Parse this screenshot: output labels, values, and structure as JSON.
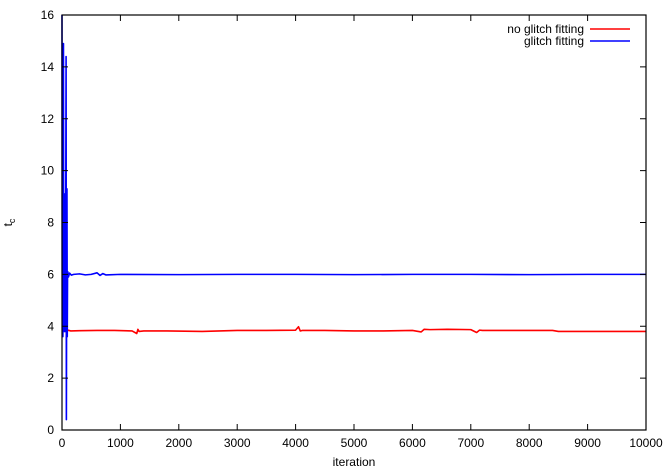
{
  "chart_data": {
    "type": "line",
    "title": "",
    "xlabel": "iteration",
    "ylabel": "t",
    "ylabel_subscript": "c",
    "xlim": [
      0,
      10000
    ],
    "ylim": [
      0,
      16
    ],
    "x_ticks": [
      0,
      1000,
      2000,
      3000,
      4000,
      5000,
      6000,
      7000,
      8000,
      9000,
      10000
    ],
    "y_ticks": [
      0,
      2,
      4,
      6,
      8,
      10,
      12,
      14,
      16
    ],
    "grid": false,
    "legend_position": "top-right",
    "series": [
      {
        "name": "no glitch fitting",
        "color": "#ff0000",
        "x": [
          0,
          20,
          40,
          60,
          80,
          100,
          150,
          300,
          600,
          900,
          1200,
          1280,
          1300,
          1320,
          1400,
          1800,
          2400,
          3000,
          3500,
          4000,
          4050,
          4080,
          4120,
          4500,
          5000,
          5500,
          6000,
          6150,
          6200,
          6300,
          6600,
          7000,
          7100,
          7150,
          7200,
          7500,
          8000,
          8400,
          8500,
          8600,
          9000,
          9500,
          10000
        ],
        "y": [
          3.85,
          3.9,
          3.8,
          3.85,
          3.75,
          3.85,
          3.82,
          3.83,
          3.84,
          3.84,
          3.82,
          3.72,
          3.88,
          3.8,
          3.82,
          3.82,
          3.8,
          3.84,
          3.84,
          3.85,
          3.98,
          3.82,
          3.84,
          3.84,
          3.82,
          3.82,
          3.84,
          3.78,
          3.88,
          3.87,
          3.88,
          3.87,
          3.76,
          3.85,
          3.84,
          3.84,
          3.84,
          3.84,
          3.8,
          3.8,
          3.8,
          3.8,
          3.8
        ]
      },
      {
        "name": "glitch fitting",
        "color": "#0000ff",
        "x": [
          0,
          5,
          10,
          15,
          20,
          25,
          30,
          35,
          40,
          45,
          50,
          55,
          60,
          65,
          70,
          75,
          80,
          85,
          90,
          95,
          100,
          110,
          130,
          160,
          200,
          300,
          400,
          500,
          600,
          650,
          700,
          750,
          1000,
          2000,
          3000,
          4000,
          5000,
          6000,
          7000,
          8000,
          9000,
          10000
        ],
        "y": [
          16,
          4.2,
          8.9,
          3.6,
          5.8,
          14.9,
          4.0,
          8.0,
          3.8,
          9.1,
          6.0,
          7.2,
          3.8,
          9.4,
          14.4,
          0.4,
          6.2,
          9.3,
          3.6,
          6.0,
          6.1,
          5.9,
          6.05,
          5.97,
          6.0,
          6.02,
          5.98,
          6.0,
          6.06,
          5.96,
          6.03,
          5.98,
          6.0,
          5.99,
          6.0,
          6.0,
          5.99,
          6.0,
          6.0,
          5.99,
          6.0,
          6.0
        ]
      }
    ]
  }
}
